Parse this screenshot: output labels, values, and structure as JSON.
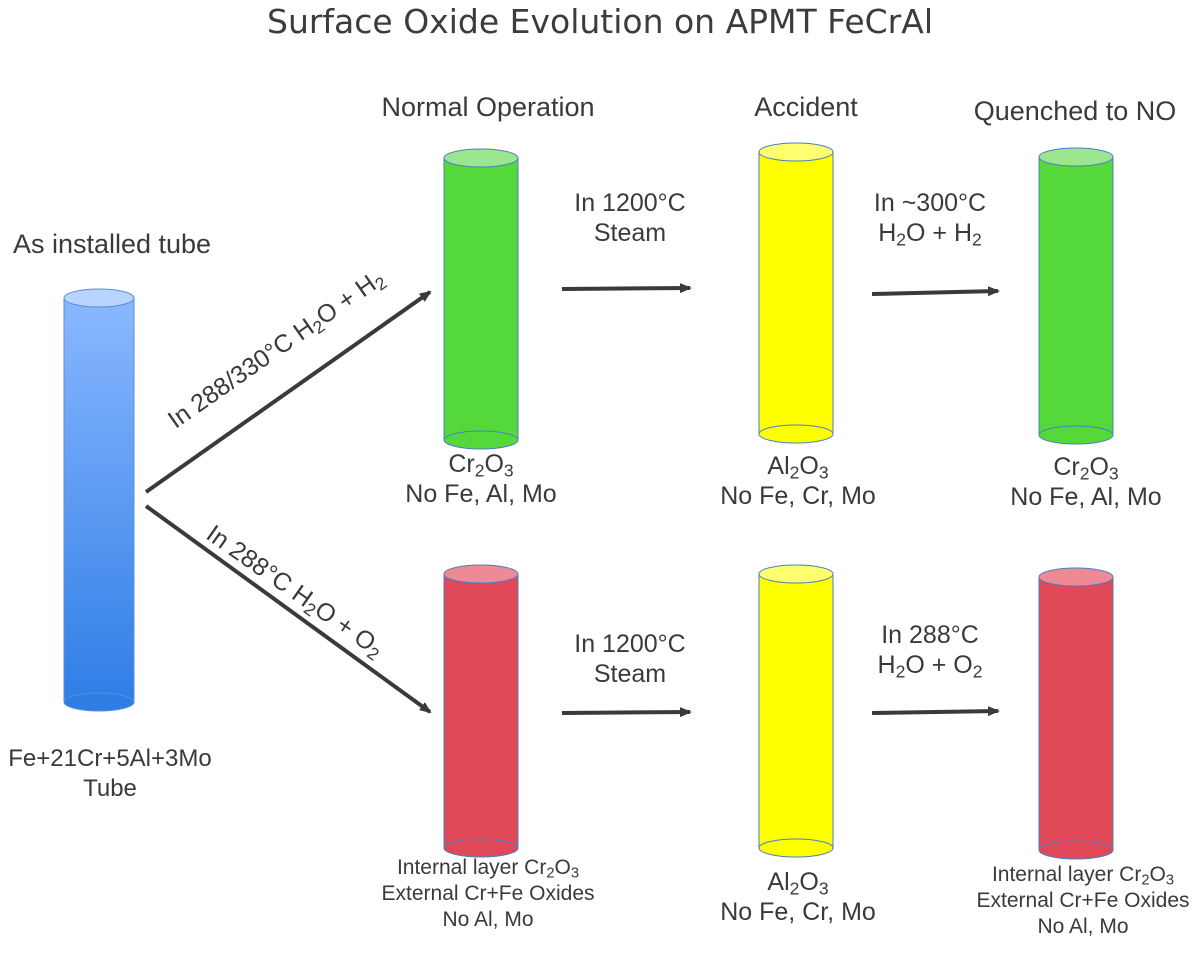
{
  "title": "Surface Oxide Evolution on APMT FeCrAl",
  "columns": {
    "installed": "As installed tube",
    "normal": "Normal Operation",
    "accident": "Accident",
    "quenched": "Quenched to NO"
  },
  "installed_tube": {
    "line1": "Fe+21Cr+5Al+3Mo",
    "line2": "Tube"
  },
  "branch_labels": {
    "upper": {
      "prefix": "In 288/330°C H",
      "mid": "O + H",
      "sub1": "2",
      "sub2": "2"
    },
    "lower": {
      "prefix": "In 288°C H",
      "mid": "O + O",
      "sub1": "2",
      "sub2": "2"
    }
  },
  "top_row": {
    "normal": {
      "oxide_a": "Cr",
      "oxide_sub_a": "2",
      "oxide_b": "O",
      "oxide_sub_b": "3",
      "note": "No Fe, Al, Mo"
    },
    "step1": {
      "line1": "In 1200°C",
      "line2": "Steam"
    },
    "accident": {
      "oxide_a": "Al",
      "oxide_sub_a": "2",
      "oxide_b": "O",
      "oxide_sub_b": "3",
      "note": "No Fe, Cr, Mo"
    },
    "step2": {
      "line1": "In ~300°C",
      "line2_a": "H",
      "line2_sub_a": "2",
      "line2_b": "O + H",
      "line2_sub_b": "2"
    },
    "quenched": {
      "oxide_a": "Cr",
      "oxide_sub_a": "2",
      "oxide_b": "O",
      "oxide_sub_b": "3",
      "note": "No Fe, Al, Mo"
    }
  },
  "bottom_row": {
    "normal": {
      "line1_a": "Internal layer Cr",
      "line1_sub_a": "2",
      "line1_b": "O",
      "line1_sub_b": "3",
      "line2": "External Cr+Fe Oxides",
      "line3": "No Al, Mo"
    },
    "step1": {
      "line1": "In 1200°C",
      "line2": "Steam"
    },
    "accident": {
      "oxide_a": "Al",
      "oxide_sub_a": "2",
      "oxide_b": "O",
      "oxide_sub_b": "3",
      "note": "No Fe, Cr, Mo"
    },
    "step2": {
      "line1": "In 288°C",
      "line2_a": "H",
      "line2_sub_a": "2",
      "line2_b": "O + O",
      "line2_sub_b": "2"
    },
    "quenched": {
      "line1_a": "Internal layer Cr",
      "line1_sub_a": "2",
      "line1_b": "O",
      "line1_sub_b": "3",
      "line2": "External Cr+Fe Oxides",
      "line3": "No Al, Mo"
    }
  },
  "colors": {
    "blue_top": "#8ab8ff",
    "blue_bottom": "#2f7ee6",
    "green": "#55d93a",
    "green_cap": "#9be68e",
    "yellow": "#ffff00",
    "yellow_cap": "#ffff70",
    "red": "#e04858",
    "red_cap": "#ee8a95",
    "arrow": "#3a3a3a"
  }
}
